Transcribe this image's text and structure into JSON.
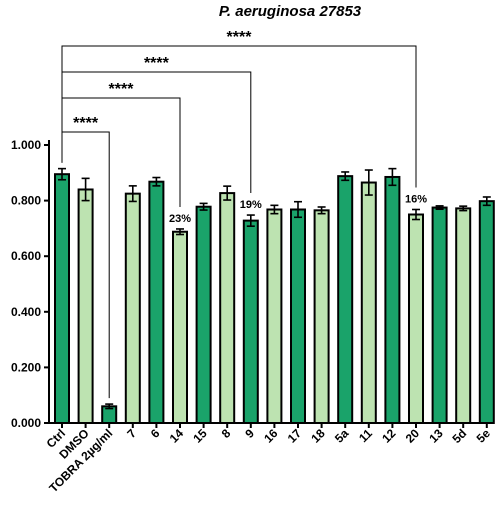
{
  "chart_data": {
    "type": "bar",
    "title": "P. aeruginosa 27853",
    "xlabel": "",
    "ylabel": "",
    "ylim": [
      0,
      1.0
    ],
    "yticks": [
      "0.000",
      "0.200",
      "0.400",
      "0.600",
      "0.800",
      "1.000"
    ],
    "ytick_values": [
      0,
      0.2,
      0.4,
      0.6,
      0.8,
      1.0
    ],
    "categories": [
      "Ctrl",
      "DMSO",
      "TOBRA 2µg/ml",
      "7",
      "6",
      "14",
      "15",
      "8",
      "9",
      "16",
      "17",
      "18",
      "5a",
      "11",
      "12",
      "20",
      "13",
      "5d",
      "5e"
    ],
    "values": [
      0.895,
      0.84,
      0.06,
      0.825,
      0.868,
      0.688,
      0.778,
      0.827,
      0.728,
      0.768,
      0.768,
      0.765,
      0.888,
      0.865,
      0.885,
      0.75,
      0.775,
      0.772,
      0.798
    ],
    "errors": [
      0.02,
      0.04,
      0.008,
      0.028,
      0.015,
      0.01,
      0.012,
      0.025,
      0.02,
      0.015,
      0.028,
      0.012,
      0.015,
      0.045,
      0.03,
      0.018,
      0.006,
      0.008,
      0.015
    ],
    "bar_colors": [
      "#1aa36a",
      "#bde3b1",
      "#1aa36a",
      "#bde3b1",
      "#1aa36a",
      "#bde3b1",
      "#1aa36a",
      "#bde3b1",
      "#1aa36a",
      "#bde3b1",
      "#1aa36a",
      "#bde3b1",
      "#1aa36a",
      "#bde3b1",
      "#1aa36a",
      "#bde3b1",
      "#1aa36a",
      "#bde3b1",
      "#1aa36a"
    ],
    "annotations": [
      {
        "category": "14",
        "text": "23%"
      },
      {
        "category": "9",
        "text": "19%"
      },
      {
        "category": "20",
        "text": "16%"
      }
    ],
    "significance": [
      {
        "from": "Ctrl",
        "to": "TOBRA 2µg/ml",
        "text": "****"
      },
      {
        "from": "Ctrl",
        "to": "14",
        "text": "****"
      },
      {
        "from": "Ctrl",
        "to": "9",
        "text": "****"
      },
      {
        "from": "Ctrl",
        "to": "20",
        "text": "****"
      }
    ]
  }
}
